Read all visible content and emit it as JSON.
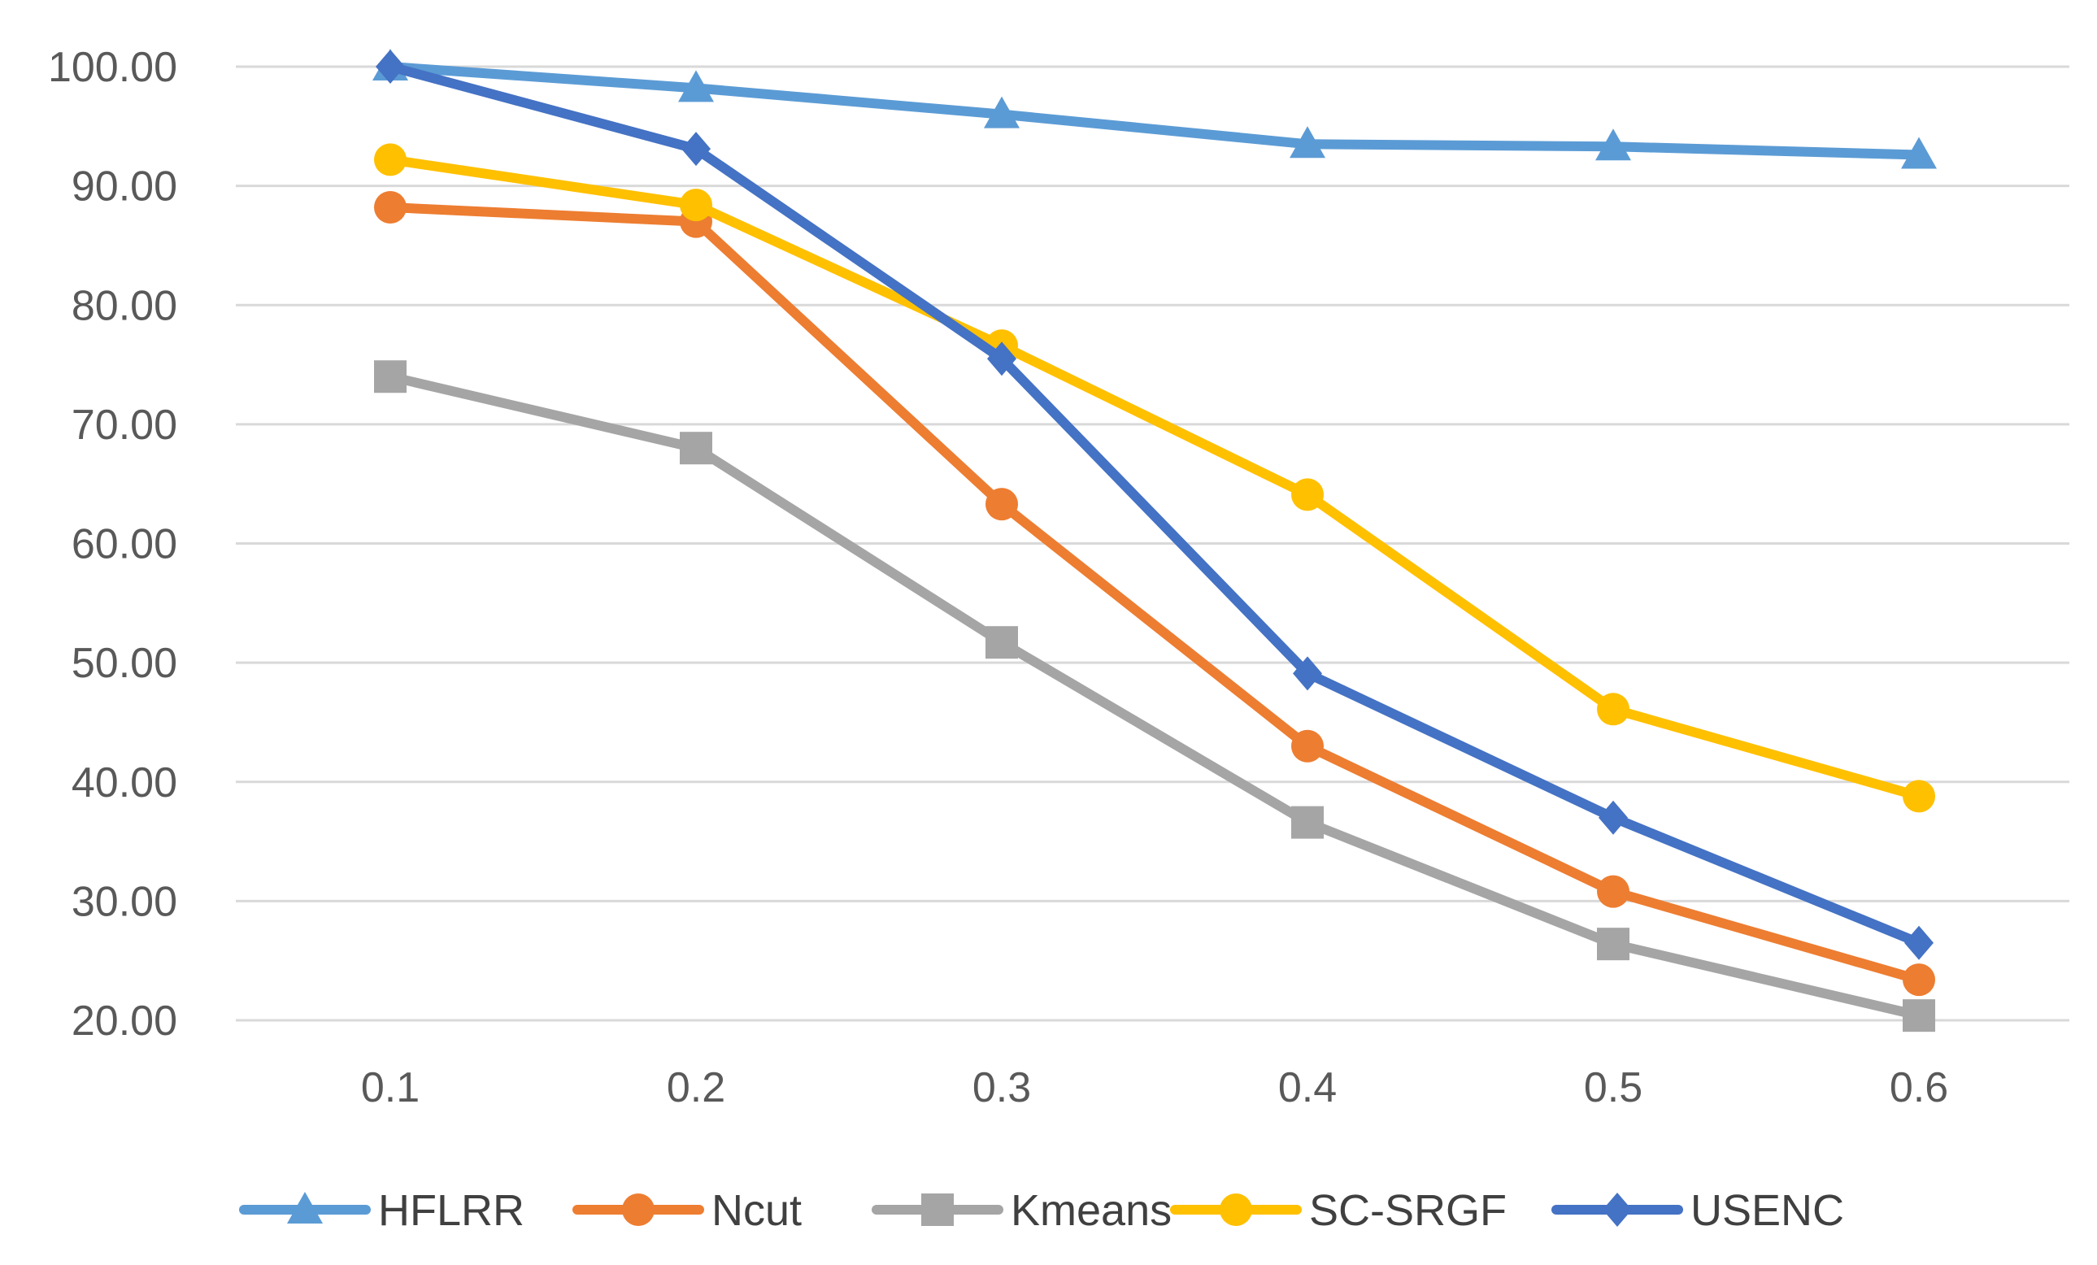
{
  "chart_data": {
    "type": "line",
    "title": "",
    "xlabel": "",
    "ylabel": "",
    "categories": [
      "0.1",
      "0.2",
      "0.3",
      "0.4",
      "0.5",
      "0.6"
    ],
    "ylim": [
      20,
      100
    ],
    "yticks": [
      20,
      30,
      40,
      50,
      60,
      70,
      80,
      90,
      100
    ],
    "ytick_labels": [
      "20.00",
      "30.00",
      "40.00",
      "50.00",
      "60.00",
      "70.00",
      "80.00",
      "90.00",
      "100.00"
    ],
    "grid": "horizontal",
    "legend_position": "bottom",
    "series": [
      {
        "name": "HFLRR",
        "color": "#5B9BD5",
        "marker": "triangle",
        "values": [
          100.0,
          98.2,
          96.0,
          93.5,
          93.3,
          92.6
        ]
      },
      {
        "name": "Ncut",
        "color": "#ED7D31",
        "marker": "circle",
        "values": [
          88.2,
          87.0,
          63.3,
          43.0,
          30.8,
          23.4
        ]
      },
      {
        "name": "Kmeans",
        "color": "#A5A5A5",
        "marker": "square",
        "values": [
          74.0,
          68.0,
          51.7,
          36.6,
          26.4,
          20.4
        ]
      },
      {
        "name": "SC-SRGF",
        "color": "#FFC000",
        "marker": "circle",
        "values": [
          92.2,
          88.4,
          76.6,
          64.1,
          46.1,
          38.8
        ]
      },
      {
        "name": "USENC",
        "color": "#4472C4",
        "marker": "diamond",
        "values": [
          100.0,
          93.1,
          75.5,
          49.1,
          37.0,
          26.5
        ]
      }
    ]
  }
}
